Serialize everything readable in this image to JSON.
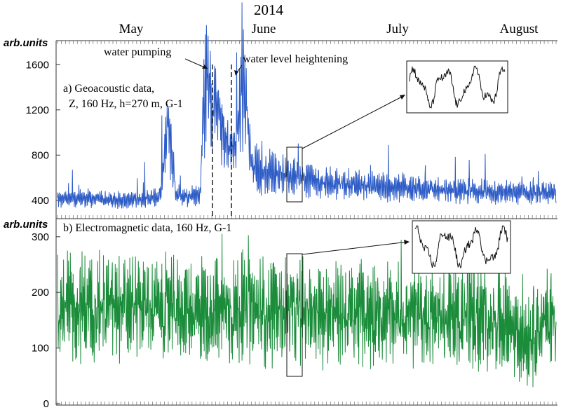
{
  "year_title": "2014",
  "months": [
    "May",
    "June",
    "July",
    "August"
  ],
  "panel_a": {
    "ylabel": "arb.units",
    "ticks": [
      "400",
      "800",
      "1200",
      "1600"
    ],
    "label_lines": [
      "a) Geoacoustic data,",
      "Z, 160 Hz, h=270 m,  G-1"
    ],
    "annotation_pumping": "water pumping",
    "annotation_level": "water level heightening",
    "series_color": "#2e5cc6"
  },
  "panel_b": {
    "ylabel": "arb.units",
    "ticks": [
      "0",
      "100",
      "200",
      "300"
    ],
    "label": "b) Electromagnetic data, 160 Hz,  G-1",
    "series_color": "#1a8c3a"
  },
  "chart_data": [
    {
      "type": "line",
      "title": "a) Geoacoustic data, Z, 160 Hz, h=270 m, G-1",
      "ylabel": "arb.units",
      "x_domain": [
        "2014-04-19",
        "2014-08-23"
      ],
      "ylim": [
        250,
        1800
      ],
      "yticks": [
        400,
        800,
        1200,
        1600
      ],
      "series": [
        {
          "x": [
            "2014-04-19",
            "2014-04-26",
            "2014-05-03",
            "2014-05-10",
            "2014-05-15",
            "2014-05-17",
            "2014-05-19",
            "2014-05-22",
            "2014-05-25",
            "2014-05-26",
            "2014-05-27",
            "2014-05-28",
            "2014-05-30",
            "2014-06-01",
            "2014-06-03",
            "2014-06-05",
            "2014-06-07",
            "2014-06-10",
            "2014-06-13",
            "2014-06-18",
            "2014-06-25",
            "2014-07-02",
            "2014-07-10",
            "2014-07-18",
            "2014-07-26",
            "2014-08-03",
            "2014-08-10",
            "2014-08-17",
            "2014-08-23"
          ],
          "values": [
            410,
            420,
            400,
            410,
            430,
            1100,
            450,
            440,
            450,
            1300,
            1550,
            1200,
            1100,
            900,
            850,
            1450,
            700,
            650,
            650,
            600,
            560,
            540,
            520,
            500,
            490,
            480,
            470,
            460,
            460
          ]
        }
      ],
      "events": [
        {
          "date": "2014-05-25",
          "label": "water pumping"
        },
        {
          "date": "2014-05-29",
          "label": "water level heightening"
        }
      ]
    },
    {
      "type": "line",
      "title": "b) Electromagnetic data, 160 Hz, G-1",
      "ylabel": "arb.units",
      "x_domain": [
        "2014-04-19",
        "2014-08-23"
      ],
      "ylim": [
        0,
        330
      ],
      "yticks": [
        0,
        100,
        200,
        300
      ],
      "series": [
        {
          "x": [
            "2014-04-19",
            "2014-05-01",
            "2014-05-15",
            "2014-06-01",
            "2014-06-15",
            "2014-07-01",
            "2014-07-15",
            "2014-08-01",
            "2014-08-10",
            "2014-08-15",
            "2014-08-23"
          ],
          "values": [
            170,
            175,
            170,
            168,
            165,
            162,
            160,
            155,
            150,
            120,
            160
          ]
        }
      ]
    }
  ]
}
